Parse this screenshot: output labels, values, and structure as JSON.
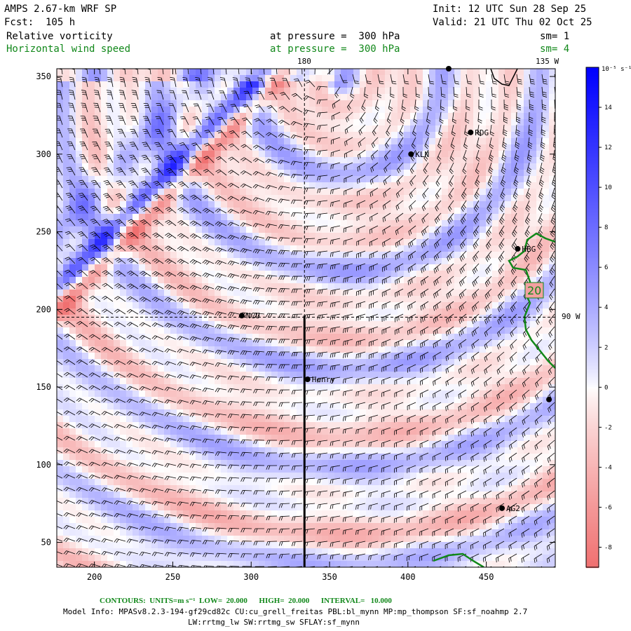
{
  "header": {
    "model_title": "AMPS 2.67-km WRF SP",
    "init": "Init: 12 UTC Sun 28 Sep 25",
    "forecast": "Fcst:  105 h",
    "valid": "Valid: 21 UTC Thu 02 Oct 25"
  },
  "fields": [
    {
      "name": "Relative vorticity",
      "level": "at pressure =  300 hPa",
      "smoothing": "sm= 1",
      "color": "#000000"
    },
    {
      "name": "Horizontal wind speed",
      "level": "at pressure =  300 hPa",
      "smoothing": "sm= 4",
      "color": "#11881a"
    }
  ],
  "chart_data": {
    "type": "heatmap",
    "x_ticks": [
      200,
      250,
      300,
      350,
      400,
      450
    ],
    "y_ticks": [
      50,
      100,
      150,
      200,
      250,
      300,
      350
    ],
    "xlim": [
      176,
      494
    ],
    "ylim": [
      34,
      355
    ],
    "longitude_labels": [
      "180",
      "135 W",
      "90 W"
    ],
    "colorbar": {
      "units": "10⁻⁵ s⁻¹",
      "ticks": [
        14,
        12,
        10,
        8,
        6,
        4,
        2,
        0,
        -2,
        -4,
        -6,
        -8
      ],
      "range": [
        -9,
        16
      ],
      "colors": {
        "negative": "#f08080",
        "zero": "#ffffff",
        "positive": "#0000ff"
      }
    },
    "stations": [
      {
        "label": "RDG",
        "x": 440,
        "y": 314
      },
      {
        "label": "KLN",
        "x": 402,
        "y": 300
      },
      {
        "label": "HBG",
        "x": 470,
        "y": 239
      },
      {
        "label": "NCU",
        "x": 294,
        "y": 196
      },
      {
        "label": "Henry",
        "x": 336,
        "y": 155
      },
      {
        "label": "AG2",
        "x": 460,
        "y": 72
      },
      {
        "label": "",
        "x": 490,
        "y": 142
      },
      {
        "label": "",
        "x": 426,
        "y": 355
      }
    ],
    "contour_label": "20",
    "contour_style": {
      "color": "#11881a"
    }
  },
  "footer": {
    "contours_units": "CONTOURS:  UNITS=m s⁻¹  LOW=  20.000      HIGH=  20.000      INTERVAL=   10.000",
    "model_info": "Model Info: MPASv8.2.3-194-gf29cd82c CU:cu_grell_freitas PBL:bl_mynn MP:mp_thompson SF:sf_noahmp 2.7",
    "model_info_2": "LW:rrtmg_lw SW:rrtmg_sw SFLAY:sf_mynn"
  }
}
